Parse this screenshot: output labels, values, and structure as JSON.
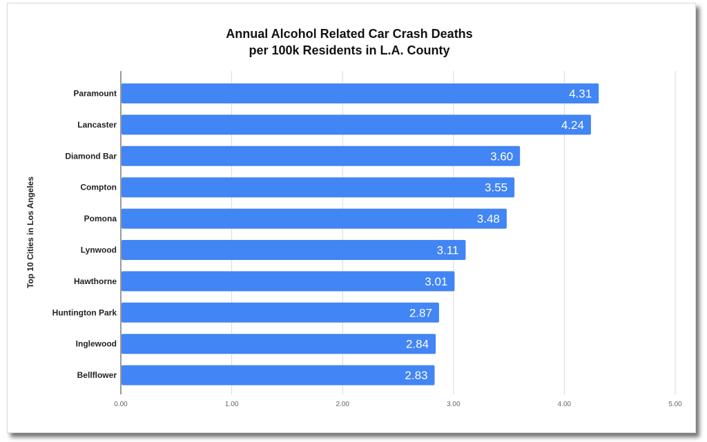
{
  "chart_data": {
    "type": "bar",
    "orientation": "horizontal",
    "title_lines": [
      "Annual Alcohol Related Car Crash Deaths",
      "per 100k Residents in L.A. County"
    ],
    "xlabel": "",
    "ylabel": "Top 10 Cities in Los Angeles",
    "categories": [
      "Paramount",
      "Lancaster",
      "Diamond Bar",
      "Compton",
      "Pomona",
      "Lynwood",
      "Hawthorne",
      "Huntington Park",
      "Inglewood",
      "Bellflower"
    ],
    "values": [
      4.31,
      4.24,
      3.6,
      3.55,
      3.48,
      3.11,
      3.01,
      2.87,
      2.84,
      2.83
    ],
    "data_labels": [
      "4.31",
      "4.24",
      "3.60",
      "3.55",
      "3.48",
      "3.11",
      "3.01",
      "2.87",
      "2.84",
      "2.83"
    ],
    "xlim": [
      0,
      5
    ],
    "x_ticks": [
      0,
      1,
      2,
      3,
      4,
      5
    ],
    "x_tick_labels": [
      "0.00",
      "1.00",
      "2.00",
      "3.00",
      "4.00",
      "5.00"
    ],
    "grid": "vertical",
    "legend": "none",
    "bar_color": "#4285f4"
  }
}
